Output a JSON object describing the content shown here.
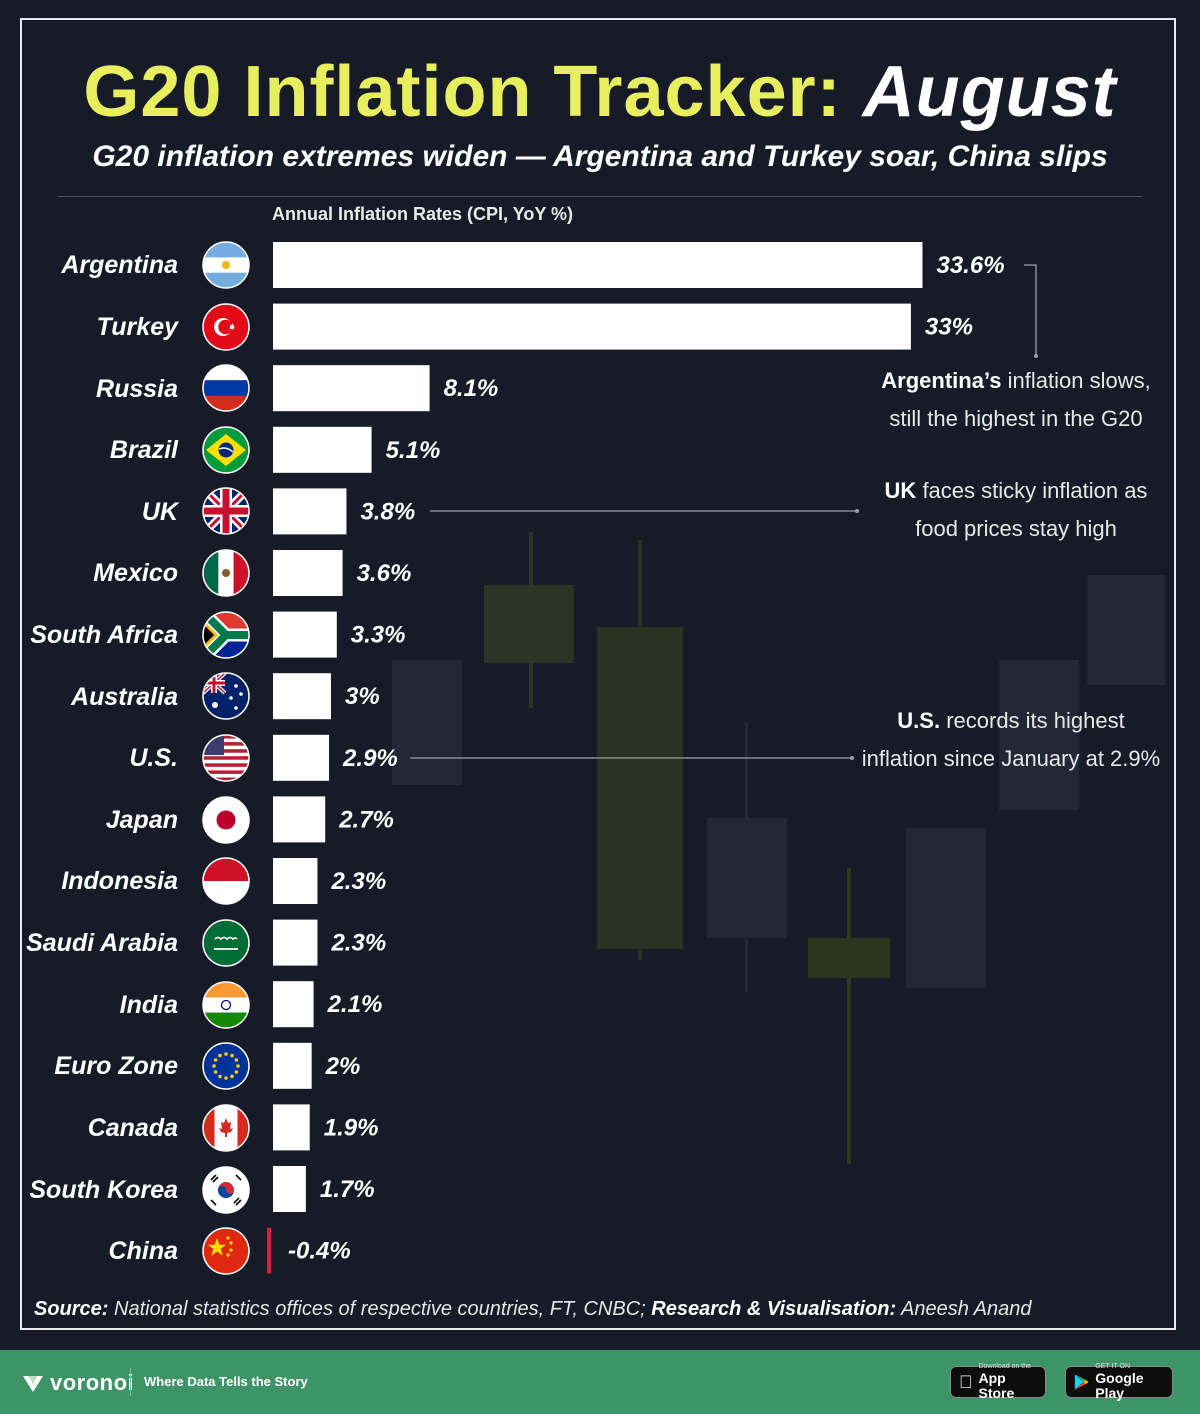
{
  "header": {
    "title_part1": "G20 Inflation Tracker:",
    "title_part2": "August",
    "subtitle": "G20 inflation extremes widen — Argentina and Turkey soar, China slips"
  },
  "chart_data": {
    "type": "bar",
    "orientation": "horizontal",
    "title": "G20 Inflation Tracker: August",
    "subtitle": "G20 inflation extremes widen — Argentina and Turkey soar, China slips",
    "xlabel": "Annual Inflation Rates (CPI, YoY %)",
    "categories": [
      "Argentina",
      "Turkey",
      "Russia",
      "Brazil",
      "UK",
      "Mexico",
      "South Africa",
      "Australia",
      "U.S.",
      "Japan",
      "Indonesia",
      "Saudi Arabia",
      "India",
      "Euro Zone",
      "Canada",
      "South Korea",
      "China"
    ],
    "values": [
      33.6,
      33,
      8.1,
      5.1,
      3.8,
      3.6,
      3.3,
      3,
      2.9,
      2.7,
      2.3,
      2.3,
      2.1,
      2,
      1.9,
      1.7,
      -0.4
    ],
    "value_labels": [
      "33.6%",
      "33%",
      "8.1%",
      "5.1%",
      "3.8%",
      "3.6%",
      "3.3%",
      "3%",
      "2.9%",
      "2.7%",
      "2.3%",
      "2.3%",
      "2.1%",
      "2%",
      "1.9%",
      "1.7%",
      "-0.4%"
    ],
    "flags": [
      "argentina-flag-icon",
      "turkey-flag-icon",
      "russia-flag-icon",
      "brazil-flag-icon",
      "uk-flag-icon",
      "mexico-flag-icon",
      "south-africa-flag-icon",
      "australia-flag-icon",
      "us-flag-icon",
      "japan-flag-icon",
      "indonesia-flag-icon",
      "saudi-arabia-flag-icon",
      "india-flag-icon",
      "euro-zone-flag-icon",
      "canada-flag-icon",
      "south-korea-flag-icon",
      "china-flag-icon"
    ],
    "colors": {
      "positive": "#ffffff",
      "negative": "#d0243a",
      "title_accent": "#e8ef5e"
    },
    "grid": false
  },
  "annotations": {
    "argentina": {
      "bold": "Argentina’s",
      "text": " inflation slows, still the highest in the G20"
    },
    "uk": {
      "bold": "UK",
      "text": " faces sticky inflation as food prices stay high"
    },
    "us": {
      "bold": "U.S.",
      "text": " records its highest inflation since January at 2.9%"
    }
  },
  "source": {
    "label": "Source:",
    "text": " National statistics offices of respective countries, FT, CNBC; ",
    "credit_label": "Research & Visualisation:",
    "credit_text": " Aneesh Anand"
  },
  "footer": {
    "brand": "voronoi",
    "tagline": "Where Data Tells the Story",
    "app_store_small": "Download on the",
    "app_store_big": "App Store",
    "google_play_small": "GET IT ON",
    "google_play_big": "Google Play"
  }
}
